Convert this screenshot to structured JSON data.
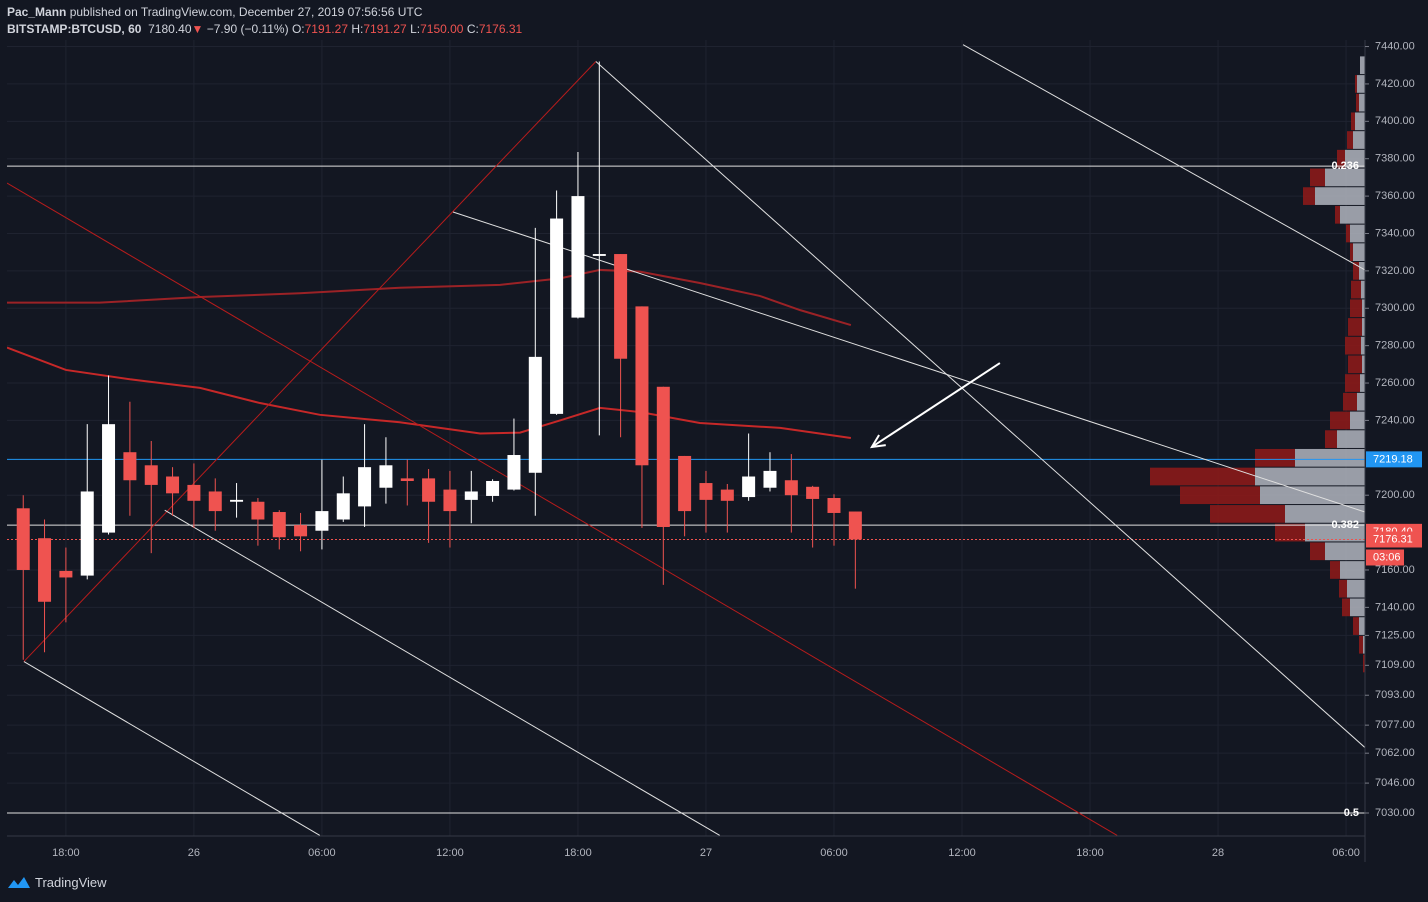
{
  "header": {
    "author": "Pac_Mann",
    "published": "published on TradingView.com, December 27, 2019 07:56:56 UTC",
    "symbol": "BITSTAMP:BTCUSD, 60",
    "last": "7180.40",
    "change": "−7.90 (−0.11%)",
    "ohlc": [
      {
        "key": "O:",
        "value": "7191.27"
      },
      {
        "key": "H:",
        "value": "7191.27"
      },
      {
        "key": "L:",
        "value": "7150.00"
      },
      {
        "key": "C:",
        "value": "7176.31"
      }
    ]
  },
  "footer": {
    "brand": "TradingView"
  },
  "chart_data": {
    "type": "candlestick",
    "x": [
      25.6667,
      25.7083,
      25.75,
      25.7917,
      25.8333,
      25.875,
      25.9167,
      25.9583,
      26.0,
      26.0417,
      26.0833,
      26.125,
      26.1667,
      26.2083,
      26.25,
      26.2917,
      26.3333,
      26.375,
      26.4167,
      26.4583,
      26.5,
      26.5417,
      26.5833,
      26.625,
      26.6667,
      26.7083,
      26.75,
      26.7917,
      26.8333,
      26.875,
      26.9167,
      26.9583,
      27.0,
      27.0417,
      27.0833,
      27.125,
      27.1667,
      27.2083,
      27.25,
      27.2917
    ],
    "open": [
      7193,
      7177,
      7159.5,
      7157,
      7180,
      7223,
      7216,
      7210,
      7205.5,
      7202,
      7196.5,
      7196.5,
      7191,
      7184,
      7181,
      7187,
      7194,
      7204,
      7209,
      7209,
      7203,
      7197.5,
      7199.6,
      7203,
      7212,
      7243.5,
      7295,
      7328,
      7329,
      7301,
      7258,
      7221,
      7206.5,
      7203,
      7199,
      7204,
      7208,
      7204.5,
      7198.5,
      7191.27
    ],
    "high": [
      7200,
      7187,
      7172,
      7238,
      7264,
      7250,
      7229,
      7215,
      7217,
      7209,
      7206.5,
      7198.5,
      7192,
      7190.5,
      7219,
      7210,
      7238,
      7231,
      7219,
      7214,
      7213,
      7213,
      7208.5,
      7241,
      7343,
      7363,
      7383.6,
      7432,
      7329,
      7301,
      7258,
      7221,
      7213,
      7206,
      7233,
      7223,
      7222,
      7205,
      7200.5,
      7191.27
    ],
    "low": [
      7112,
      7116,
      7132,
      7155,
      7179,
      7189,
      7169,
      7189,
      7182.5,
      7181,
      7188,
      7173,
      7171,
      7170,
      7171,
      7185.7,
      7183,
      7195.5,
      7194.5,
      7174.5,
      7172,
      7185,
      7196.5,
      7202.5,
      7189,
      7243,
      7294.5,
      7232,
      7231,
      7182.5,
      7152,
      7178,
      7180,
      7180,
      7197,
      7202,
      7180,
      7172,
      7173,
      7150
    ],
    "close": [
      7160,
      7143,
      7156,
      7202,
      7238,
      7208,
      7205.5,
      7201,
      7197,
      7191.5,
      7197.5,
      7187,
      7177.5,
      7178,
      7191.5,
      7201,
      7215,
      7216,
      7207.6,
      7196.5,
      7191.5,
      7202,
      7207.6,
      7221.5,
      7274,
      7348,
      7360,
      7329,
      7273,
      7216,
      7183,
      7191.5,
      7197.5,
      7197,
      7210,
      7213,
      7200,
      7198,
      7190.5,
      7176.31
    ],
    "up_color": "#ffffff",
    "down_color": "#ef5350",
    "moving_averages": [
      {
        "color": "#9b2226",
        "x": [
          25.635,
          25.816,
          26.012,
          26.207,
          26.402,
          26.598,
          26.715,
          26.793,
          26.871,
          26.988,
          27.105,
          27.184,
          27.283
        ],
        "values": [
          7303,
          7303,
          7306,
          7308,
          7311,
          7312.5,
          7316,
          7320.5,
          7319.6,
          7313.5,
          7306.6,
          7299,
          7291
        ]
      },
      {
        "color": "#c62828",
        "x": [
          25.635,
          25.75,
          25.875,
          26.012,
          26.129,
          26.246,
          26.402,
          26.559,
          26.637,
          26.715,
          26.793,
          26.871,
          26.988,
          27.145,
          27.283
        ],
        "values": [
          7279,
          7267,
          7262,
          7257.4,
          7249.3,
          7243,
          7239,
          7233,
          7233.5,
          7240,
          7246.7,
          7244.5,
          7238.6,
          7236,
          7230.6
        ]
      }
    ],
    "trend_lines": [
      {
        "color": "#b71c1c",
        "x": [
          25.668,
          26.785
        ],
        "values": [
          7111,
          7432
        ]
      },
      {
        "color": "#b71c1c",
        "x": [
          25.635,
          27.803
        ],
        "values": [
          7367,
          7018
        ]
      },
      {
        "color": "#e0e0e0",
        "x": [
          26.785,
          28.287
        ],
        "values": [
          7432,
          7065
        ]
      },
      {
        "color": "#e0e0e0",
        "x": [
          27.502,
          28.287
        ],
        "values": [
          7441,
          7320.5
        ]
      },
      {
        "color": "#e0e0e0",
        "x": [
          26.506,
          28.287
        ],
        "values": [
          7351.5,
          7191
        ]
      },
      {
        "color": "#e0e0e0",
        "x": [
          25.668,
          26.246
        ],
        "values": [
          7111,
          7018
        ]
      },
      {
        "color": "#e0e0e0",
        "x": [
          25.943,
          27.027
        ],
        "values": [
          7192,
          7018
        ]
      }
    ],
    "arrow": {
      "color": "#ffffff",
      "x": [
        27.574,
        27.324
      ],
      "values": [
        7270.7,
        7225.8
      ]
    },
    "fib_levels": [
      {
        "value": 7376,
        "label": "0.236"
      },
      {
        "value": 7184,
        "label": "0.382"
      },
      {
        "value": 7030,
        "label": "0.5"
      }
    ],
    "level_line": {
      "value": 7219.18,
      "color": "#2196f3"
    },
    "last_price_line": {
      "value": 7176.31,
      "color": "#ef5350"
    },
    "price_tags": [
      {
        "value": 7219.18,
        "color": "#2196f3"
      },
      {
        "value": 7180.4,
        "label": "7180.40",
        "color": "#ef5350"
      },
      {
        "value": 7176.31,
        "color": "#ef5350"
      }
    ],
    "countdown": "03:06",
    "volume_profile": {
      "prices": [
        7430,
        7420,
        7410,
        7400,
        7390,
        7380,
        7370,
        7360,
        7350,
        7340,
        7330,
        7320,
        7310,
        7300,
        7290,
        7280,
        7270,
        7260,
        7250,
        7240,
        7230,
        7220,
        7210,
        7200,
        7190,
        7180,
        7170,
        7160,
        7150,
        7140,
        7130,
        7120,
        7110
      ],
      "up": [
        5,
        8,
        6,
        10,
        12,
        20,
        40,
        50,
        25,
        15,
        12,
        6,
        4,
        3,
        3,
        4,
        3,
        5,
        8,
        15,
        28,
        70,
        110,
        105,
        80,
        60,
        40,
        25,
        18,
        15,
        6,
        2,
        0
      ],
      "down": [
        0,
        2,
        3,
        4,
        6,
        8,
        15,
        12,
        5,
        4,
        3,
        6,
        10,
        12,
        14,
        16,
        14,
        15,
        14,
        20,
        12,
        40,
        105,
        80,
        75,
        30,
        15,
        10,
        8,
        8,
        6,
        4,
        2
      ],
      "up_color": "#b2b5be",
      "down_color": "#8b1a1a"
    },
    "xlim": [
      25.635,
      28.287
    ],
    "xticks": [
      {
        "value": 25.75,
        "label": "18:00"
      },
      26,
      {
        "value": 26.25,
        "label": "06:00"
      },
      {
        "value": 26.5,
        "label": "12:00"
      },
      {
        "value": 26.75,
        "label": "18:00"
      },
      27,
      {
        "value": 27.25,
        "label": "06:00"
      },
      {
        "value": 27.5,
        "label": "12:00"
      },
      {
        "value": 27.75,
        "label": "18:00"
      },
      28,
      {
        "value": 28.25,
        "label": "06:00"
      }
    ],
    "ylim": [
      7017.7,
      7443.5
    ],
    "yticks": [
      {
        "value": 7440,
        "label": "7440.00"
      },
      {
        "value": 7420,
        "label": "7420.00"
      },
      {
        "value": 7400,
        "label": "7400.00"
      },
      {
        "value": 7380,
        "label": "7380.00"
      },
      {
        "value": 7360,
        "label": "7360.00"
      },
      {
        "value": 7340,
        "label": "7340.00"
      },
      {
        "value": 7320,
        "label": "7320.00"
      },
      {
        "value": 7300,
        "label": "7300.00"
      },
      {
        "value": 7280,
        "label": "7280.00"
      },
      {
        "value": 7260,
        "label": "7260.00"
      },
      {
        "value": 7240,
        "label": "7240.00"
      },
      {
        "value": 7200,
        "label": "7200.00"
      },
      {
        "value": 7160,
        "label": "7160.00"
      },
      {
        "value": 7140,
        "label": "7140.00"
      },
      {
        "value": 7125,
        "label": "7125.00"
      },
      {
        "value": 7109,
        "label": "7109.00"
      },
      {
        "value": 7093,
        "label": "7093.00"
      },
      {
        "value": 7077,
        "label": "7077.00"
      },
      {
        "value": 7062,
        "label": "7062.00"
      },
      {
        "value": 7046,
        "label": "7046.00"
      },
      {
        "value": 7030,
        "label": "7030.00"
      }
    ],
    "grid": true
  }
}
